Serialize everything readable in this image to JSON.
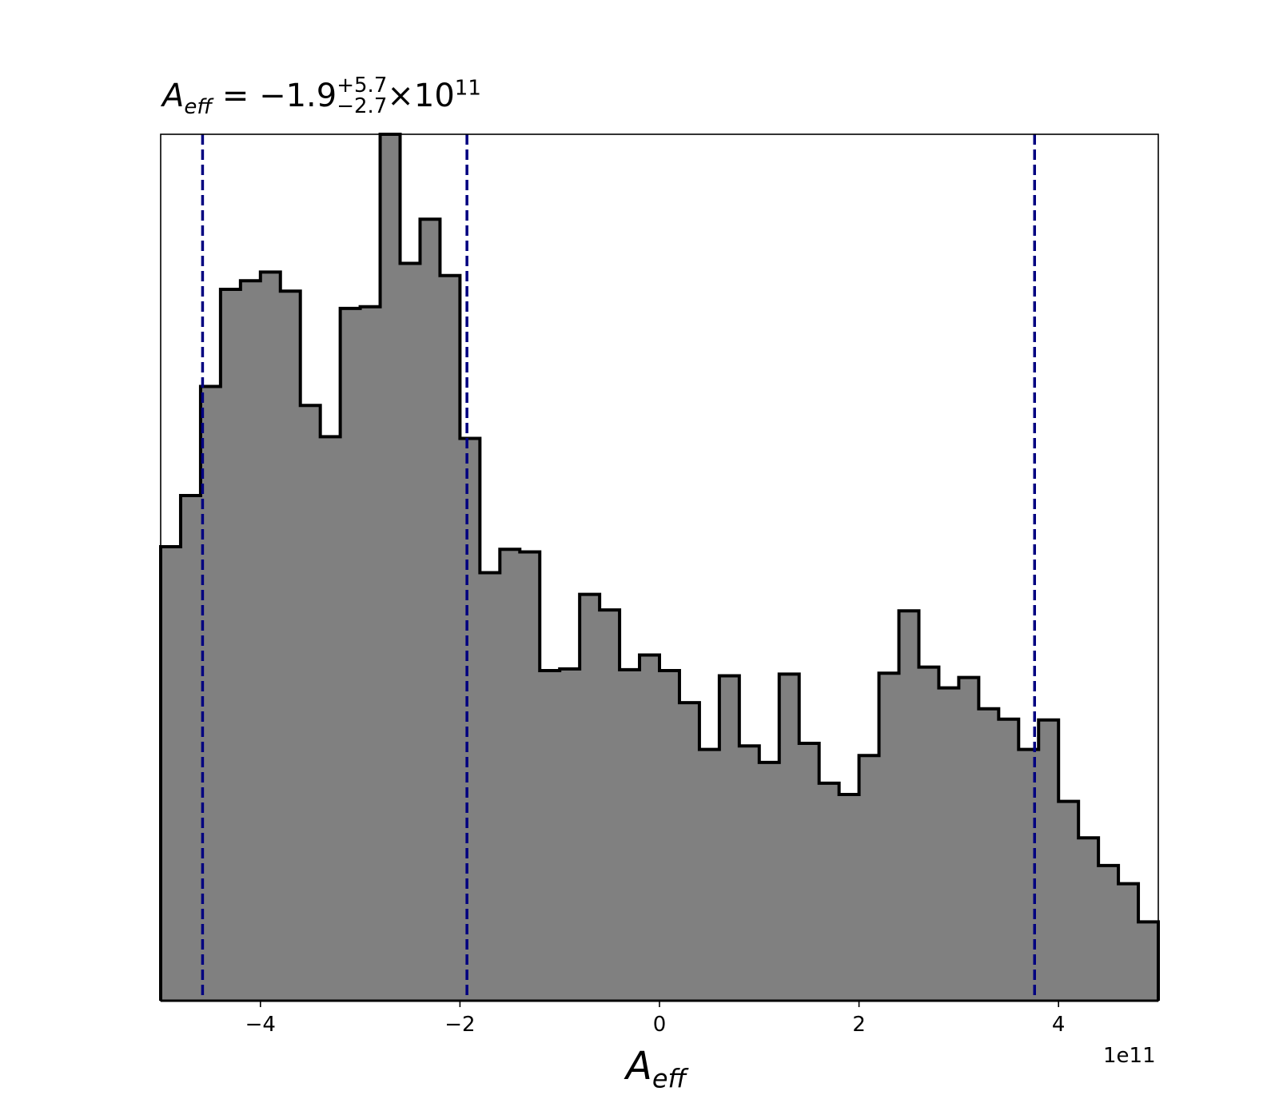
{
  "title": {
    "symbol": "A",
    "symbol_sub": "eff",
    "equals": " = ",
    "value": "−1.9",
    "plus": "+5.7",
    "minus": "−2.7",
    "times": "×",
    "power_base": "10",
    "power_exp": "11"
  },
  "xlabel": {
    "symbol": "A",
    "sub": "eff"
  },
  "x_offset_text": "1e11",
  "chart_data": {
    "type": "histogram",
    "x_scale": 100000000000.0,
    "xlim": [
      -5.0,
      5.0
    ],
    "ylim": [
      0,
      1.0
    ],
    "bin_edges": [
      -5.0,
      -4.8,
      -4.6,
      -4.4,
      -4.2,
      -4.0,
      -3.8,
      -3.6,
      -3.4,
      -3.2,
      -3.0,
      -2.8,
      -2.6,
      -2.4,
      -2.2,
      -2.0,
      -1.8,
      -1.6,
      -1.4,
      -1.2,
      -1.0,
      -0.8,
      -0.6,
      -0.4,
      -0.2,
      0.0,
      0.2,
      0.4,
      0.6,
      0.8,
      1.0,
      1.2,
      1.4,
      1.6,
      1.8,
      2.0,
      2.2,
      2.4,
      2.6,
      2.8,
      3.0,
      3.2,
      3.4,
      3.6,
      3.8,
      4.0,
      4.2,
      4.4,
      4.6,
      4.8,
      5.0
    ],
    "counts": [
      0.524,
      0.583,
      0.709,
      0.821,
      0.831,
      0.841,
      0.819,
      0.687,
      0.651,
      0.799,
      0.801,
      1.0,
      0.851,
      0.902,
      0.837,
      0.649,
      0.494,
      0.521,
      0.518,
      0.381,
      0.383,
      0.469,
      0.451,
      0.382,
      0.399,
      0.381,
      0.344,
      0.29,
      0.375,
      0.294,
      0.275,
      0.377,
      0.297,
      0.251,
      0.238,
      0.283,
      0.378,
      0.45,
      0.385,
      0.361,
      0.373,
      0.337,
      0.325,
      0.29,
      0.324,
      0.23,
      0.188,
      0.156,
      0.135,
      0.091
    ],
    "vlines": [
      -4.58,
      -1.93,
      3.76
    ],
    "xticks": [
      -4,
      -2,
      0,
      2,
      4
    ],
    "xtick_labels": [
      "−4",
      "−2",
      "0",
      "2",
      "4"
    ],
    "fill_color": "#808080",
    "edge_color": "#000000",
    "vline_color": "#000080",
    "grid": false
  }
}
